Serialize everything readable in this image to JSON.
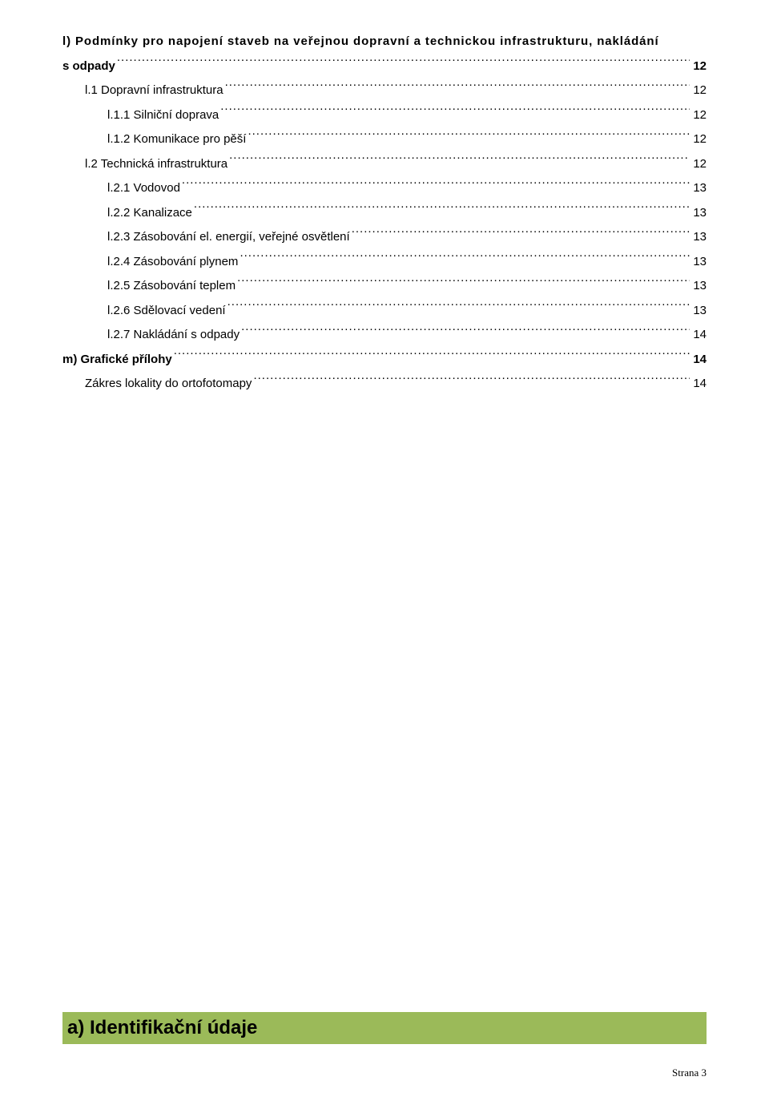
{
  "toc": {
    "line1_part1": "l) Podmínky pro napojení staveb na veřejnou dopravní a technickou infrastrukturu, nakládání",
    "line1_part2": "s odpady",
    "line1_page": "12",
    "items": [
      {
        "label": "l.1 Dopravní infrastruktura",
        "page": "12",
        "indent": 1,
        "bold": false
      },
      {
        "label": "l.1.1 Silniční doprava",
        "page": "12",
        "indent": 2,
        "bold": false
      },
      {
        "label": "l.1.2 Komunikace pro pěší",
        "page": "12",
        "indent": 2,
        "bold": false
      },
      {
        "label": "l.2 Technická infrastruktura",
        "page": "12",
        "indent": 1,
        "bold": false
      },
      {
        "label": "l.2.1 Vodovod",
        "page": "13",
        "indent": 2,
        "bold": false
      },
      {
        "label": "l.2.2 Kanalizace",
        "page": "13",
        "indent": 2,
        "bold": false
      },
      {
        "label": "l.2.3 Zásobování el. energií, veřejné osvětlení",
        "page": "13",
        "indent": 2,
        "bold": false
      },
      {
        "label": "l.2.4 Zásobování plynem",
        "page": "13",
        "indent": 2,
        "bold": false
      },
      {
        "label": "l.2.5 Zásobování teplem",
        "page": "13",
        "indent": 2,
        "bold": false
      },
      {
        "label": "l.2.6 Sdělovací vedení",
        "page": "13",
        "indent": 2,
        "bold": false
      },
      {
        "label": "l.2.7 Nakládání s odpady",
        "page": "14",
        "indent": 2,
        "bold": false
      },
      {
        "label": "m) Grafické přílohy",
        "page": "14",
        "indent": 0,
        "bold": true
      },
      {
        "label": "Zákres lokality do ortofotomapy",
        "page": "14",
        "indent": 1,
        "bold": false
      }
    ]
  },
  "section_heading": "a) Identifikační údaje",
  "footer": "Strana 3",
  "colors": {
    "band_bg": "#9bba59",
    "text": "#000000",
    "page_bg": "#ffffff"
  }
}
